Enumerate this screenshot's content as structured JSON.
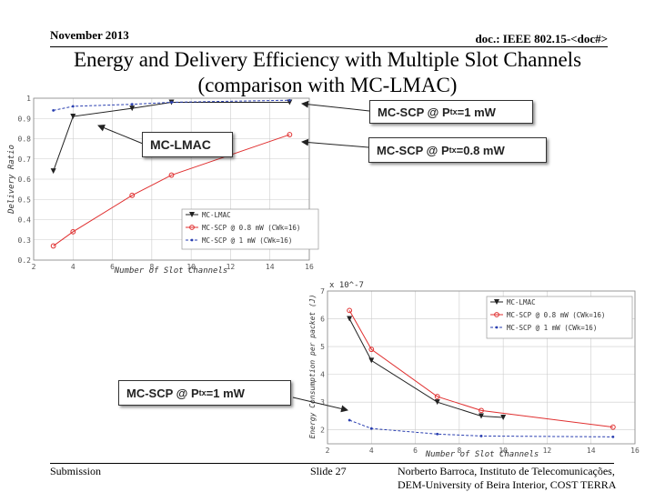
{
  "header": {
    "date": "November 2013",
    "doc_id": "doc.: IEEE 802.15-<doc#>"
  },
  "title": {
    "line1": "Energy and Delivery Efficiency with Multiple Slot Channels",
    "line2": "(comparison with MC-LMAC)"
  },
  "callouts": {
    "scp_1mw_top": {
      "prefix": "MC-SCP @ P",
      "sub": "tx",
      "suffix": "=1 mW"
    },
    "lmac": "MC-LMAC",
    "scp_08mw": {
      "prefix": "MC-SCP @ P",
      "sub": "tx",
      "suffix": "=0.8 mW"
    },
    "scp_1mw_bottom": {
      "prefix": "MC-SCP @ P",
      "sub": "tx",
      "suffix": "=1 mW"
    }
  },
  "footer": {
    "left": "Submission",
    "center": "Slide 27",
    "right_line1": "Norberto Barroca, Instituto de Telecomunicações,",
    "right_line2": "DEM-University of Beira Interior, COST TERRA"
  },
  "colors": {
    "lmac": "#222222",
    "scp_08": "#e03030",
    "scp_1": "#2a3fb0",
    "grid": "#cccccc"
  },
  "chart_data": [
    {
      "type": "line",
      "title": "",
      "xlabel": "Number of Slot Channels",
      "ylabel": "Delivery Ratio",
      "xlim": [
        2,
        16
      ],
      "ylim": [
        0.2,
        1.0
      ],
      "xticks": [
        "2",
        "4",
        "6",
        "8",
        "10",
        "12",
        "14",
        "16"
      ],
      "yticks": [
        "0.2",
        "0.3",
        "0.4",
        "0.5",
        "0.6",
        "0.7",
        "0.8",
        "0.9",
        "1"
      ],
      "series": [
        {
          "name": "MC-LMAC",
          "x": [
            3,
            4,
            7,
            9,
            15
          ],
          "values": [
            0.64,
            0.91,
            0.95,
            0.98,
            0.98
          ]
        },
        {
          "name": "MC-SCP @ 0.8 mW (CWk=16)",
          "x": [
            3,
            4,
            7,
            9,
            15
          ],
          "values": [
            0.27,
            0.34,
            0.52,
            0.62,
            0.82
          ]
        },
        {
          "name": "MC-SCP @ 1 mW (CWk=16)",
          "x": [
            3,
            4,
            7,
            9,
            15
          ],
          "values": [
            0.94,
            0.96,
            0.97,
            0.98,
            0.99
          ]
        }
      ],
      "legend": [
        "MC-LMAC",
        "MC-SCP @ 0.8 mW (CWk=16)",
        "MC-SCP @ 1 mW (CWk=16)"
      ]
    },
    {
      "type": "line",
      "title": "",
      "xlabel": "Number of Slot Channels",
      "ylabel": "Energy Consumption per packet (J)",
      "exponent_label": "x 10^-7",
      "xlim": [
        2,
        16
      ],
      "ylim": [
        1.5,
        7
      ],
      "xticks": [
        "2",
        "4",
        "6",
        "8",
        "10",
        "12",
        "14",
        "16"
      ],
      "yticks": [
        "2",
        "3",
        "4",
        "5",
        "6",
        "7"
      ],
      "series": [
        {
          "name": "MC-LMAC",
          "x": [
            3,
            4,
            7,
            9,
            10
          ],
          "values": [
            6.0,
            4.5,
            3.0,
            2.5,
            2.45
          ]
        },
        {
          "name": "MC-SCP @ 0.8 mW (CWk=16)",
          "x": [
            3,
            4,
            7,
            9,
            15
          ],
          "values": [
            6.3,
            4.9,
            3.2,
            2.7,
            2.1
          ]
        },
        {
          "name": "MC-SCP @ 1 mW (CWk=16)",
          "x": [
            3,
            4,
            7,
            9,
            15
          ],
          "values": [
            2.35,
            2.05,
            1.85,
            1.78,
            1.75
          ]
        }
      ],
      "legend": [
        "MC-LMAC",
        "MC-SCP @ 0.8 mW (CWk=16)",
        "MC-SCP @ 1 mW (CWk=16)"
      ]
    }
  ]
}
